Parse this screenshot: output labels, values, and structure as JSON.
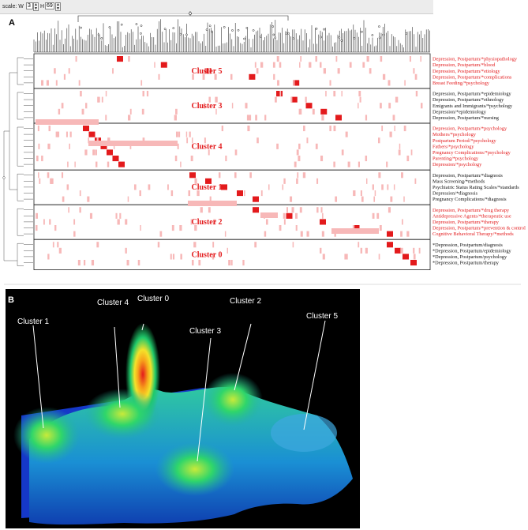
{
  "toolbar": {
    "scale_label": "scale: W",
    "w_value": "3",
    "h_label": "H",
    "h_value": "69"
  },
  "panel_a_label": "A",
  "panel_b_label": "B",
  "clusters": [
    {
      "title": "Cluster 5",
      "terms": [
        {
          "text": "Depression, Postpartum/*physiopathology",
          "color": "#e31a1c"
        },
        {
          "text": "Depression, Postpartum/*blood",
          "color": "#e31a1c"
        },
        {
          "text": "Depression, Postpartum/*etiology",
          "color": "#e31a1c"
        },
        {
          "text": "Depression, Postpartum/*complications",
          "color": "#e31a1c"
        },
        {
          "text": "Breast Feeding/*psychology",
          "color": "#e31a1c"
        }
      ]
    },
    {
      "title": "Cluster 3",
      "terms": [
        {
          "text": "Depression, Postpartum/*epidemiology",
          "color": "#111111"
        },
        {
          "text": "Depression, Postpartum/*ethnology",
          "color": "#111111"
        },
        {
          "text": "Emigrants and Immigrants/*psychology",
          "color": "#111111"
        },
        {
          "text": "Depression/*epidemiology",
          "color": "#111111"
        },
        {
          "text": "Depression, Postpartum/*nursing",
          "color": "#111111"
        }
      ]
    },
    {
      "title": "Cluster 4",
      "terms": [
        {
          "text": "Depression, Postpartum/*psychology",
          "color": "#e31a1c"
        },
        {
          "text": "Mothers/*psychology",
          "color": "#e31a1c"
        },
        {
          "text": "Postpartum Period/*psychology",
          "color": "#e31a1c"
        },
        {
          "text": "Fathers/*psychology",
          "color": "#e31a1c"
        },
        {
          "text": "Pregnancy Complications/*psychology",
          "color": "#e31a1c"
        },
        {
          "text": "Parenting/*psychology",
          "color": "#e31a1c"
        },
        {
          "text": "Depression/*psychology",
          "color": "#e31a1c"
        }
      ]
    },
    {
      "title": "Cluster 1",
      "terms": [
        {
          "text": "Depression, Postpartum/*diagnosis",
          "color": "#111111"
        },
        {
          "text": "Mass Screening/*methods",
          "color": "#111111"
        },
        {
          "text": "Psychiatric Status Rating Scales/*standards",
          "color": "#111111"
        },
        {
          "text": "Depression/*diagnosis",
          "color": "#111111"
        },
        {
          "text": "Pregnancy Complications/*diagnosis",
          "color": "#111111"
        }
      ]
    },
    {
      "title": "Cluster 2",
      "terms": [
        {
          "text": "Depression, Postpartum/*drug therapy",
          "color": "#e31a1c"
        },
        {
          "text": "Antidepressive Agents/*therapeutic use",
          "color": "#e31a1c"
        },
        {
          "text": "Depression, Postpartum/*therapy",
          "color": "#e31a1c"
        },
        {
          "text": "Depression, Postpartum/*prevention & control",
          "color": "#e31a1c"
        },
        {
          "text": "Cognitive Behavioral Therapy/*methods",
          "color": "#e31a1c"
        }
      ]
    },
    {
      "title": "Cluster 0",
      "terms": [
        {
          "text": "*Depression, Postpartum/diagnosis",
          "color": "#111111"
        },
        {
          "text": "*Depression, Postpartum/epidemiology",
          "color": "#111111"
        },
        {
          "text": "*Depression, Postpartum/psychology",
          "color": "#111111"
        },
        {
          "text": "*Depression, Postpartum/therapy",
          "color": "#111111"
        }
      ]
    }
  ],
  "peak_labels": [
    "Cluster 0",
    "Cluster 1",
    "Cluster 2",
    "Cluster 3",
    "Cluster 4",
    "Cluster 5"
  ],
  "colors": {
    "highlight": "#e31a1c",
    "faint": "#f7b8b8",
    "grid": "#222222",
    "surface_peak": "#e31a1c",
    "surface_mid": "#f4e22a",
    "surface_low": "#1fc96a",
    "surface_base": "#1b5fd6",
    "plane": "#1538c8"
  }
}
